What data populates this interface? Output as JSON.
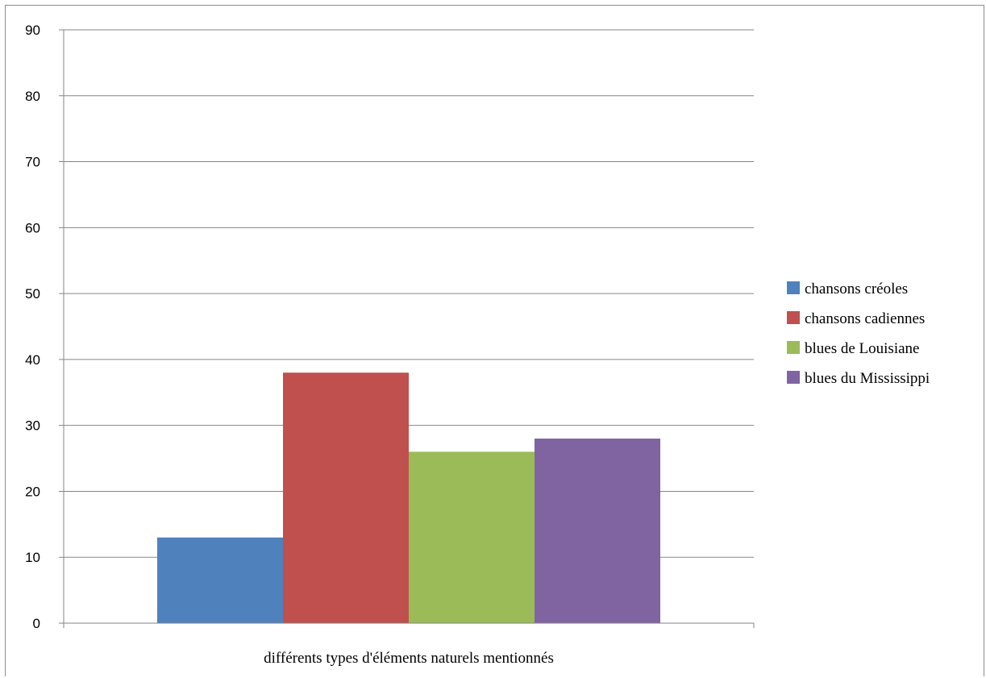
{
  "chart_data": {
    "type": "bar",
    "title": "",
    "xlabel": "",
    "ylabel": "",
    "categories": [
      "différents types d'éléments naturels mentionnés"
    ],
    "series": [
      {
        "name": "chansons créoles",
        "values": [
          13
        ],
        "color": "#4f81bd"
      },
      {
        "name": "chansons cadiennes",
        "values": [
          38
        ],
        "color": "#c0504d"
      },
      {
        "name": "blues de Louisiane",
        "values": [
          26
        ],
        "color": "#9bbb59"
      },
      {
        "name": "blues du Mississippi",
        "values": [
          28
        ],
        "color": "#8064a2"
      }
    ],
    "ylim": [
      0,
      90
    ],
    "yticks": [
      "0",
      "10",
      "20",
      "30",
      "40",
      "50",
      "60",
      "70",
      "80",
      "90"
    ],
    "grid": true,
    "legend_position": "right"
  }
}
